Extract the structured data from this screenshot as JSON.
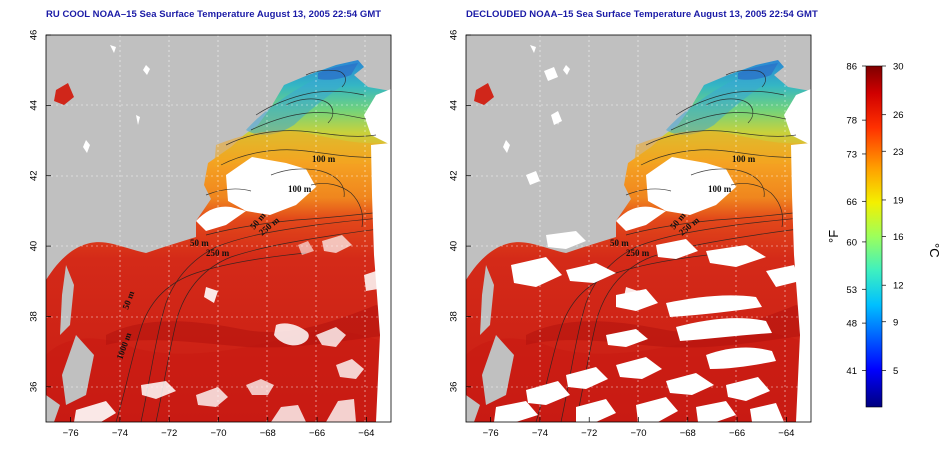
{
  "maps": [
    {
      "title": "RU COOL NOAA–15 Sea Surface Temperature August 13, 2005 22:54 GMT",
      "variant": "cloud-masked",
      "contour_labels": [
        "100 m",
        "100 m",
        "50 m",
        "250 m",
        "50 m",
        "250 m",
        "50 m",
        "1000 m"
      ]
    },
    {
      "title": "DECLOUDED NOAA–15 Sea Surface Temperature August 13, 2005 22:54 GMT",
      "variant": "declouded",
      "contour_labels": [
        "100 m",
        "100 m",
        "50 m",
        "250 m",
        "50 m",
        "250 m"
      ]
    }
  ],
  "axes": {
    "longitude_ticks": [
      "−76",
      "−74",
      "−72",
      "−70",
      "−68",
      "−66",
      "−64"
    ],
    "latitude_ticks": [
      "36",
      "38",
      "40",
      "42",
      "44",
      "46"
    ],
    "lon_range": [
      -77,
      -63
    ],
    "lat_range": [
      35,
      46
    ]
  },
  "colorbar": {
    "fahrenheit_label": "°F",
    "celsius_label": "°C",
    "fahrenheit_ticks": [
      "86",
      "78",
      "73",
      "66",
      "60",
      "53",
      "48",
      "41"
    ],
    "celsius_ticks": [
      "30",
      "26",
      "23",
      "19",
      "16",
      "12",
      "9",
      "5"
    ],
    "celsius_range": [
      2,
      30
    ]
  },
  "colors": {
    "land": "#c0c0c0",
    "cloud": "#ffffff",
    "title": "#1a1aa6",
    "sst_warm": "#d0261a",
    "sst_hot": "#a80e10",
    "sst_mid": "#f08a1c",
    "sst_cool": "#6ed47a",
    "sst_cold": "#1e8fd8"
  }
}
